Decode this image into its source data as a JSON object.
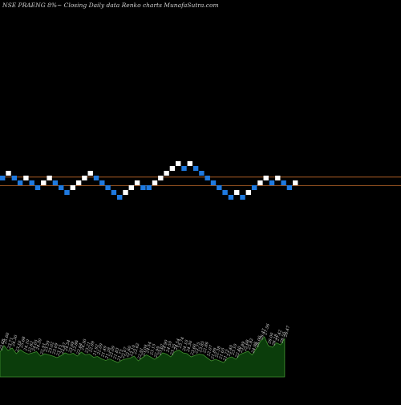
{
  "header": {
    "title": "NSE PRAENG 8%~  Closing Daily data  Renko  charts MunafaSutra.com"
  },
  "colors": {
    "background": "#000000",
    "up_brick": "#ffffff",
    "down_brick": "#1f7ae0",
    "reference_line": "#c06a2a",
    "volume_fill": "#0b3d0b",
    "volume_stroke": "#3f8f2f",
    "label_text": "#dcdcdc"
  },
  "chart_data": [
    {
      "type": "renko",
      "title": "NSE PRAENG 8%~  Closing Daily data  Renko  charts MunafaSutra.com",
      "bricks": [
        {
          "dir": "down",
          "level": 0
        },
        {
          "dir": "up",
          "level": 1
        },
        {
          "dir": "down",
          "level": 0
        },
        {
          "dir": "down",
          "level": -1
        },
        {
          "dir": "up",
          "level": 0
        },
        {
          "dir": "down",
          "level": -1
        },
        {
          "dir": "down",
          "level": -2
        },
        {
          "dir": "up",
          "level": -1
        },
        {
          "dir": "up",
          "level": 0
        },
        {
          "dir": "down",
          "level": -1
        },
        {
          "dir": "down",
          "level": -2
        },
        {
          "dir": "down",
          "level": -3
        },
        {
          "dir": "up",
          "level": -2
        },
        {
          "dir": "up",
          "level": -1
        },
        {
          "dir": "up",
          "level": 0
        },
        {
          "dir": "up",
          "level": 1
        },
        {
          "dir": "down",
          "level": 0
        },
        {
          "dir": "down",
          "level": -1
        },
        {
          "dir": "down",
          "level": -2
        },
        {
          "dir": "down",
          "level": -3
        },
        {
          "dir": "down",
          "level": -4
        },
        {
          "dir": "up",
          "level": -3
        },
        {
          "dir": "up",
          "level": -2
        },
        {
          "dir": "up",
          "level": -1
        },
        {
          "dir": "down",
          "level": -2
        },
        {
          "dir": "down",
          "level": -2
        },
        {
          "dir": "up",
          "level": -1
        },
        {
          "dir": "up",
          "level": 0
        },
        {
          "dir": "up",
          "level": 1
        },
        {
          "dir": "up",
          "level": 2
        },
        {
          "dir": "up",
          "level": 3
        },
        {
          "dir": "down",
          "level": 2
        },
        {
          "dir": "up",
          "level": 3
        },
        {
          "dir": "down",
          "level": 2
        },
        {
          "dir": "down",
          "level": 1
        },
        {
          "dir": "down",
          "level": 0
        },
        {
          "dir": "down",
          "level": -1
        },
        {
          "dir": "down",
          "level": -2
        },
        {
          "dir": "down",
          "level": -3
        },
        {
          "dir": "down",
          "level": -4
        },
        {
          "dir": "up",
          "level": -3
        },
        {
          "dir": "down",
          "level": -4
        },
        {
          "dir": "up",
          "level": -3
        },
        {
          "dir": "down",
          "level": -2
        },
        {
          "dir": "up",
          "level": -1
        },
        {
          "dir": "up",
          "level": 0
        },
        {
          "dir": "down",
          "level": -1
        },
        {
          "dir": "up",
          "level": 0
        },
        {
          "dir": "down",
          "level": -1
        },
        {
          "dir": "down",
          "level": -2
        },
        {
          "dir": "up",
          "level": -1
        }
      ],
      "reference_lines": [
        {
          "level": 0.2
        },
        {
          "level": -1.6
        }
      ],
      "grid": false
    },
    {
      "type": "area",
      "ylim": [
        0,
        1
      ],
      "values": [
        0.62,
        0.78,
        0.66,
        0.72,
        0.58,
        0.68,
        0.61,
        0.57,
        0.6,
        0.63,
        0.52,
        0.58,
        0.55,
        0.52,
        0.48,
        0.53,
        0.6,
        0.56,
        0.59,
        0.52,
        0.62,
        0.55,
        0.57,
        0.49,
        0.51,
        0.45,
        0.41,
        0.45,
        0.4,
        0.36,
        0.42,
        0.45,
        0.47,
        0.52,
        0.4,
        0.48,
        0.55,
        0.5,
        0.44,
        0.5,
        0.6,
        0.57,
        0.5,
        0.63,
        0.67,
        0.6,
        0.58,
        0.5,
        0.54,
        0.57,
        0.55,
        0.47,
        0.4,
        0.44,
        0.4,
        0.36,
        0.47,
        0.5,
        0.44,
        0.56,
        0.6,
        0.64,
        0.55,
        0.7,
        0.88,
        1.0,
        0.78,
        0.74,
        0.85,
        0.8,
        0.95
      ],
      "data_labels": [
        "23.68",
        "25.60",
        "23.71",
        "24.30",
        "23.10",
        "25.68",
        "24.10",
        "22.62",
        "24.05",
        "24.30",
        "22.91",
        "23.59",
        "23.02",
        "23.09",
        "23.15",
        "22.87",
        "24.54",
        "23.69",
        "23.86",
        "22.64",
        "24.30",
        "23.21",
        "22.99",
        "21.92",
        "22.09",
        "21.49",
        "21.28",
        "22.09",
        "21.83",
        "21.73",
        "22.07",
        "22.60",
        "23.10",
        "23.62",
        "22.91",
        "23.09",
        "24.54",
        "23.15",
        "22.99",
        "23.62",
        "24.90",
        "24.50",
        "23.35",
        "24.54",
        "25.74",
        "24.10",
        "24.30",
        "23.60",
        "23.75",
        "23.85",
        "22.86",
        "22.07",
        "21.89",
        "22.38",
        "21.65",
        "21.73",
        "22.40",
        "23.10",
        "22.40",
        "23.89",
        "25.68",
        "25.82",
        "24.98",
        "26.00",
        "26.47",
        "27.56",
        "26.00",
        "26.28",
        "27.42",
        "26.55",
        "26.47"
      ]
    }
  ]
}
